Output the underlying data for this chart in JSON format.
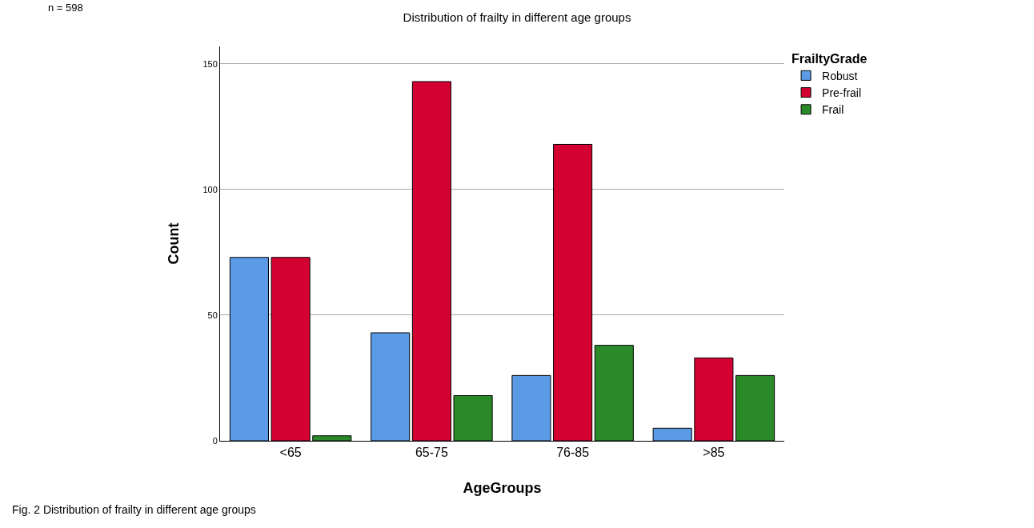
{
  "chart_data": {
    "type": "bar",
    "title": "Distribution of frailty in different age groups",
    "xlabel": "AgeGroups",
    "ylabel": "Count",
    "legend_title": "FrailtyGrade",
    "categories": [
      "<65",
      "65-75",
      "76-85",
      ">85"
    ],
    "series": [
      {
        "name": "Robust",
        "color": "#5b9be6",
        "values": [
          73,
          43,
          26,
          5
        ]
      },
      {
        "name": "Pre-frail",
        "color": "#d50032",
        "values": [
          73,
          143,
          118,
          33
        ]
      },
      {
        "name": "Frail",
        "color": "#2a8a2a",
        "values": [
          2,
          18,
          38,
          26
        ]
      }
    ],
    "ylim": [
      0,
      157
    ],
    "yticks": [
      0,
      50,
      100,
      150
    ],
    "grid": "y",
    "legend": "top right",
    "annotations": [
      "n = 598",
      "Fig. 2 Distribution of frailty in different age groups"
    ]
  }
}
